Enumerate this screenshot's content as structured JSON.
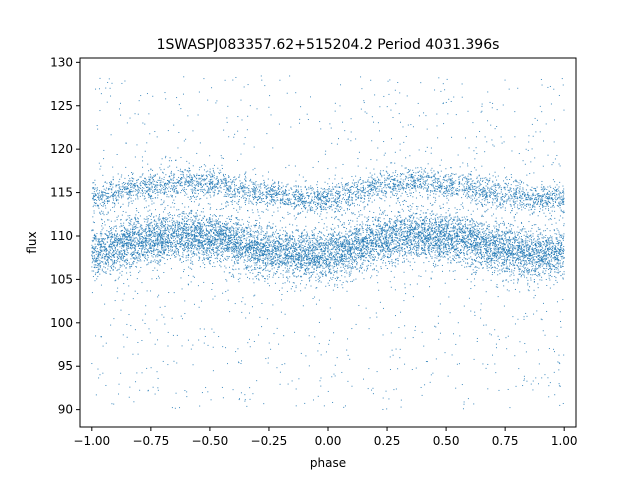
{
  "chart_data": {
    "type": "scatter",
    "title": "1SWASPJ083357.62+515204.2 Period 4031.396s",
    "xlabel": "phase",
    "ylabel": "flux",
    "xlim": [
      -1.05,
      1.05
    ],
    "ylim": [
      88.0,
      130.5
    ],
    "x_ticks": [
      -1.0,
      -0.75,
      -0.5,
      -0.25,
      0.0,
      0.25,
      0.5,
      0.75,
      1.0
    ],
    "x_tick_labels": [
      "−1.00",
      "−0.75",
      "−0.50",
      "−0.25",
      "0.00",
      "0.25",
      "0.50",
      "0.75",
      "1.00"
    ],
    "y_ticks": [
      90,
      95,
      100,
      105,
      110,
      115,
      120,
      125,
      130
    ],
    "y_tick_labels": [
      "90",
      "95",
      "100",
      "105",
      "110",
      "115",
      "120",
      "125",
      "130"
    ],
    "grid": false,
    "marker_color": "#1f77b4",
    "series": [
      {
        "x_range": [
          -1.0,
          1.0
        ],
        "main_band": {
          "description_values": "dense band: flux vs phase follows a shallow double-humped curve",
          "phase": [
            -1.0,
            -0.75,
            -0.6,
            -0.5,
            -0.25,
            -0.1,
            0.0,
            0.25,
            0.35,
            0.5,
            0.75,
            0.9,
            1.0
          ],
          "flux_center": [
            108.2,
            109.6,
            110.1,
            109.8,
            108.4,
            107.8,
            108.0,
            109.6,
            110.1,
            109.8,
            108.4,
            107.8,
            108.2
          ],
          "half_width": 2.6
        },
        "upper_band": {
          "phase": [
            -1.0,
            -0.75,
            -0.6,
            -0.5,
            -0.25,
            -0.1,
            0.0,
            0.25,
            0.35,
            0.5,
            0.75,
            0.9,
            1.0
          ],
          "flux_center": [
            114.4,
            115.8,
            116.2,
            115.9,
            114.8,
            114.2,
            114.4,
            115.8,
            116.2,
            115.9,
            114.8,
            114.2,
            114.4
          ],
          "half_width": 1.6
        },
        "outlier_flux_range": [
          90.0,
          128.5
        ]
      }
    ]
  }
}
